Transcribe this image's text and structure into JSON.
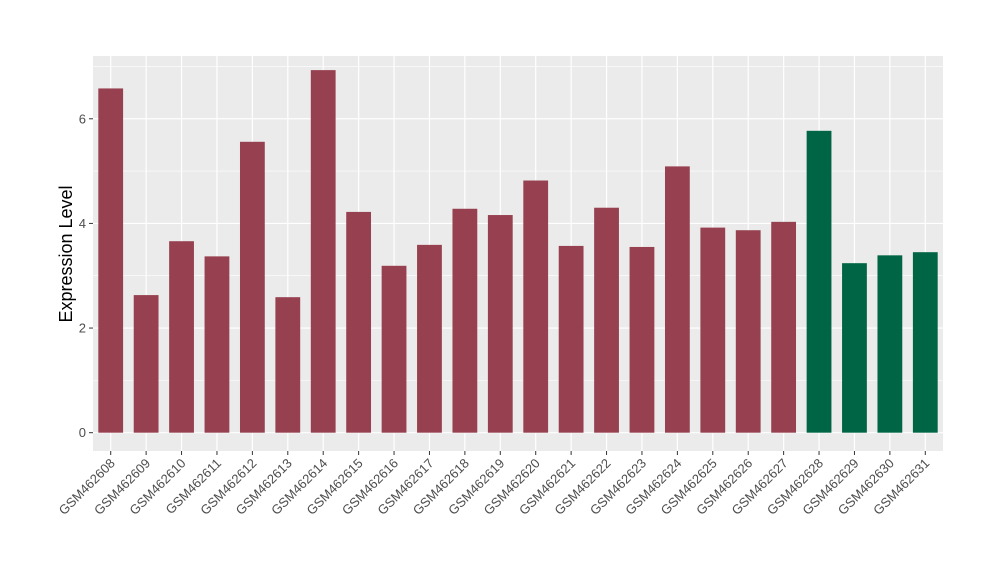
{
  "chart_data": {
    "type": "bar",
    "title": "",
    "xlabel": "",
    "ylabel": "Expression Level",
    "ylim": [
      -0.35,
      7.2
    ],
    "yticks": [
      0,
      2,
      4,
      6
    ],
    "grid": true,
    "categories": [
      "GSM462608",
      "GSM462609",
      "GSM462610",
      "GSM462611",
      "GSM462612",
      "GSM462613",
      "GSM462614",
      "GSM462615",
      "GSM462616",
      "GSM462617",
      "GSM462618",
      "GSM462619",
      "GSM462620",
      "GSM462621",
      "GSM462622",
      "GSM462623",
      "GSM462624",
      "GSM462625",
      "GSM462626",
      "GSM462627",
      "GSM462628",
      "GSM462629",
      "GSM462630",
      "GSM462631"
    ],
    "values": [
      6.58,
      2.63,
      3.66,
      3.37,
      5.56,
      2.59,
      6.93,
      4.22,
      3.19,
      3.59,
      4.28,
      4.16,
      4.82,
      3.57,
      4.3,
      3.55,
      5.09,
      3.92,
      3.87,
      4.03,
      5.77,
      3.24,
      3.39,
      3.45
    ],
    "groups": [
      "a",
      "a",
      "a",
      "a",
      "a",
      "a",
      "a",
      "a",
      "a",
      "a",
      "a",
      "a",
      "a",
      "a",
      "a",
      "a",
      "a",
      "a",
      "a",
      "a",
      "b",
      "b",
      "b",
      "b"
    ],
    "colors": {
      "a": "#97404F",
      "b": "#006544"
    },
    "panel_background": "#EBEBEB",
    "grid_color": "#FFFFFF"
  }
}
